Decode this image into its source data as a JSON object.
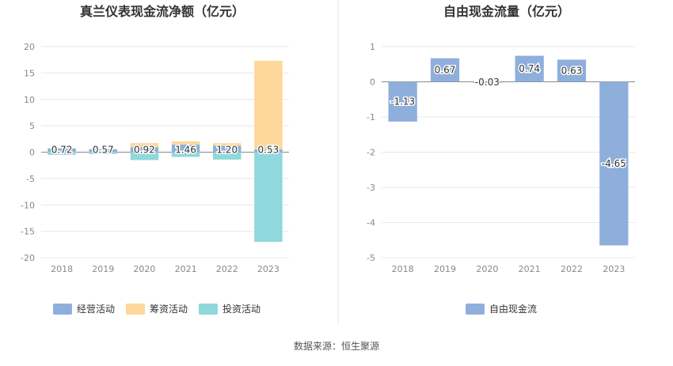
{
  "source_note": "数据来源：恒生聚源",
  "chart_data": [
    {
      "type": "bar",
      "stacked": true,
      "title": "真兰仪表现金流净额（亿元）",
      "categories": [
        "2018",
        "2019",
        "2020",
        "2021",
        "2022",
        "2023"
      ],
      "ylim": [
        -20,
        20
      ],
      "yticks": [
        20,
        15,
        10,
        5,
        0,
        -5,
        -10,
        -15,
        -20
      ],
      "grid": true,
      "legend_position": "bottom",
      "series": [
        {
          "name": "经营活动",
          "color": "#8eafdc",
          "values": [
            0.72,
            0.57,
            0.92,
            1.46,
            1.2,
            0.53
          ],
          "labels": [
            "0.72",
            "0.57",
            "0.92",
            "1.46",
            "1.20",
            "0.53"
          ]
        },
        {
          "name": "筹资活动",
          "color": "#fdd89a",
          "values": [
            -0.1,
            -0.05,
            0.8,
            0.6,
            0.5,
            16.8
          ]
        },
        {
          "name": "投资活动",
          "color": "#8fd8dc",
          "values": [
            -0.4,
            -0.3,
            -1.5,
            -0.9,
            -1.4,
            -17.0
          ]
        }
      ]
    },
    {
      "type": "bar",
      "title": "自由现金流量（亿元）",
      "categories": [
        "2018",
        "2019",
        "2020",
        "2021",
        "2022",
        "2023"
      ],
      "ylim": [
        -5,
        1
      ],
      "yticks": [
        1,
        0,
        -1,
        -2,
        -3,
        -4,
        -5
      ],
      "grid": true,
      "legend_position": "bottom",
      "series": [
        {
          "name": "自由现金流",
          "color": "#8eafdc",
          "values": [
            -1.13,
            0.67,
            -0.03,
            0.74,
            0.63,
            -4.65
          ],
          "labels": [
            "-1.13",
            "0.67",
            "-0.03",
            "0.74",
            "0.63",
            "-4.65"
          ]
        }
      ]
    }
  ]
}
